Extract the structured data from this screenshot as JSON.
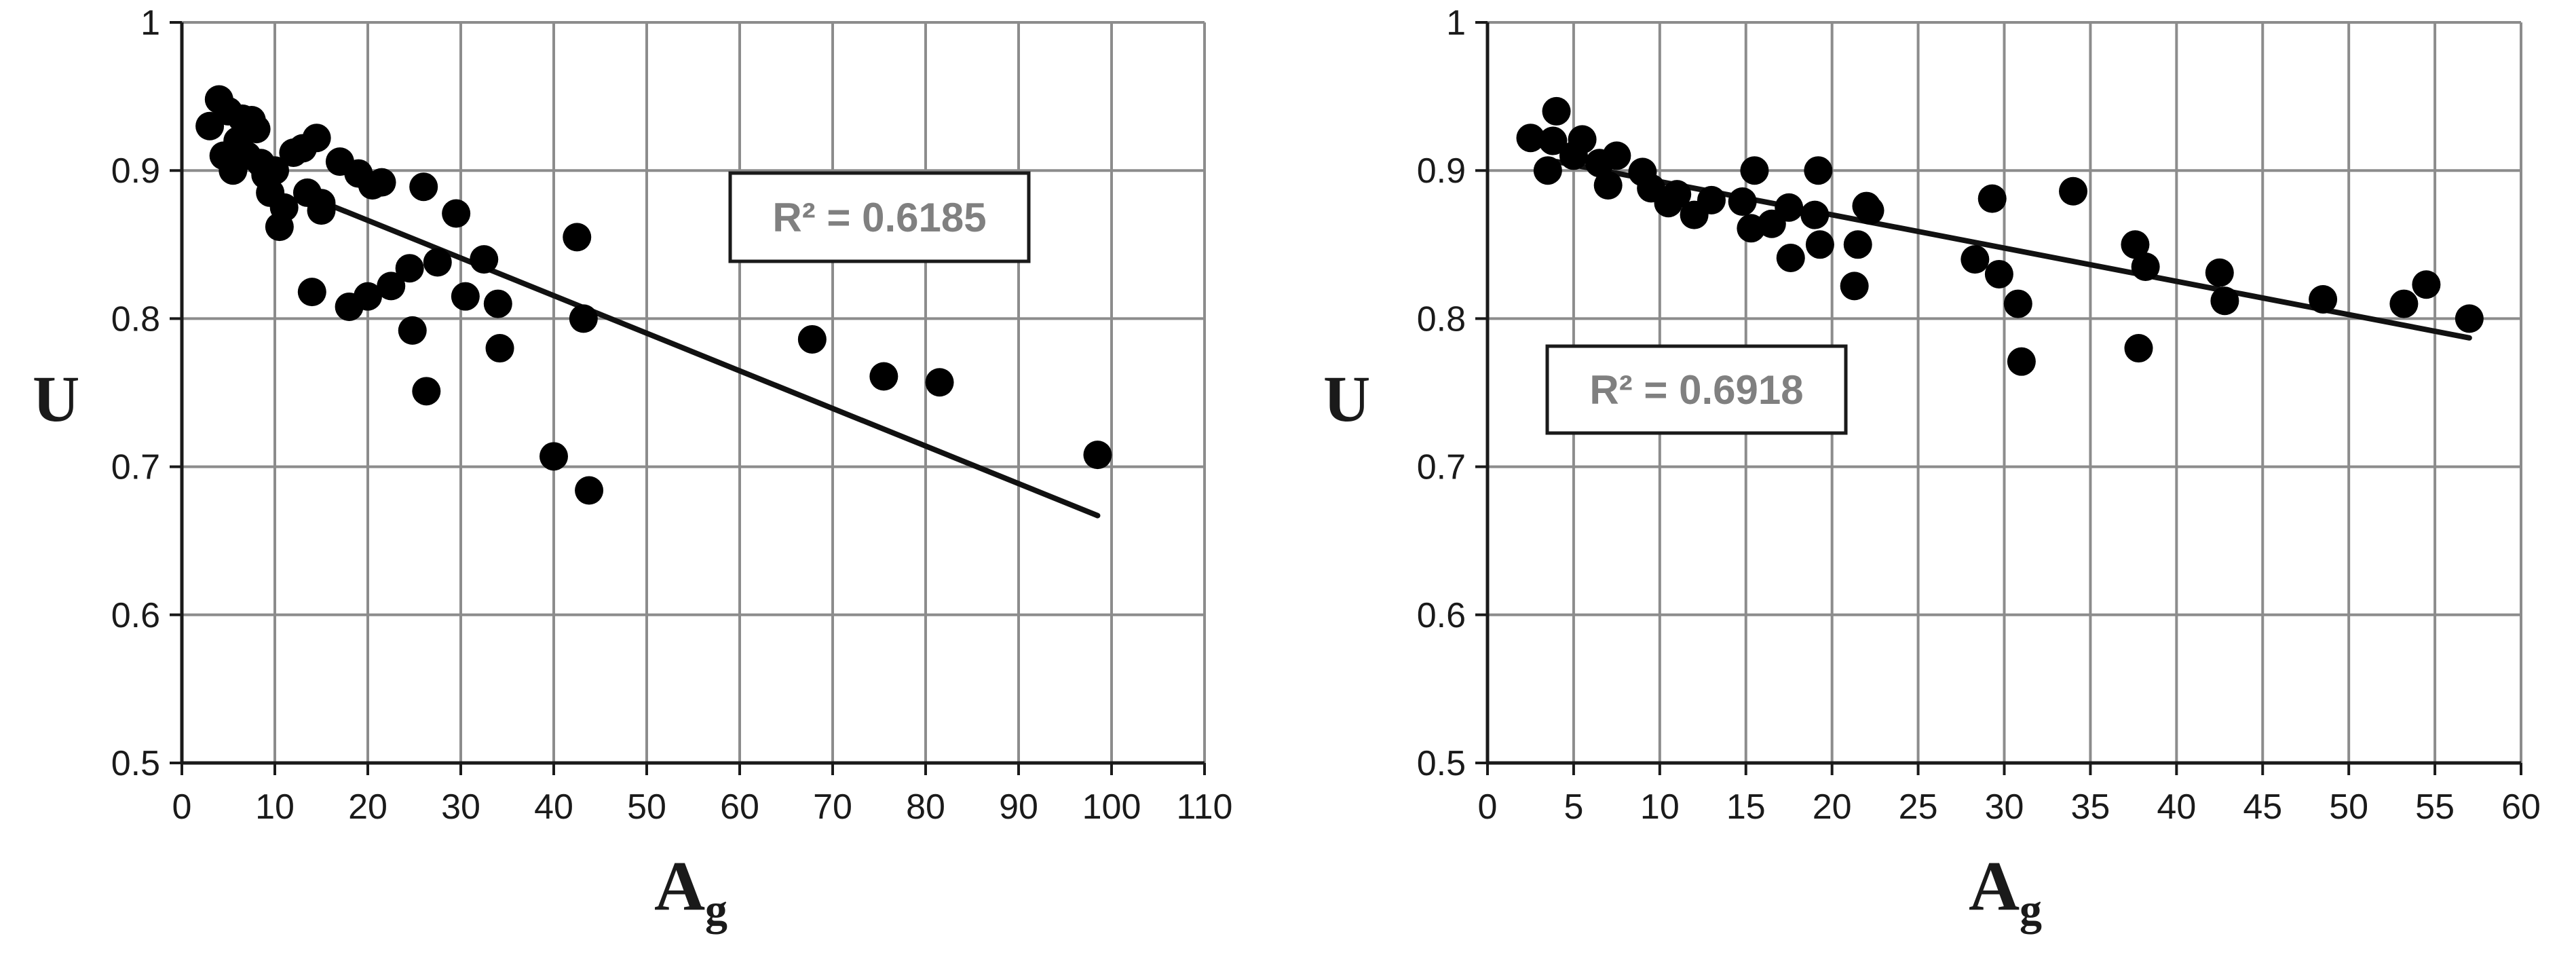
{
  "chart_data": [
    {
      "type": "scatter",
      "xlabel": "A",
      "xlabel_sub": "g",
      "ylabel": "U",
      "xlim": [
        0,
        110
      ],
      "ylim": [
        0.5,
        1
      ],
      "xticks": [
        "0",
        "10",
        "20",
        "30",
        "40",
        "50",
        "60",
        "70",
        "80",
        "90",
        "100",
        "110"
      ],
      "yticks": [
        "0.5",
        "0.6",
        "0.7",
        "0.8",
        "0.9",
        "1"
      ],
      "grid": true,
      "annotation": "R² = 0.6185",
      "trendline": [
        [
          15,
          0.879
        ],
        [
          98.5,
          0.667
        ]
      ],
      "points": [
        [
          3,
          0.93
        ],
        [
          4,
          0.948
        ],
        [
          4.5,
          0.91
        ],
        [
          5,
          0.94
        ],
        [
          5.5,
          0.9
        ],
        [
          6,
          0.92
        ],
        [
          6.5,
          0.935
        ],
        [
          7,
          0.91
        ],
        [
          7.5,
          0.934
        ],
        [
          8,
          0.928
        ],
        [
          8.5,
          0.905
        ],
        [
          9,
          0.897
        ],
        [
          9.5,
          0.885
        ],
        [
          10,
          0.9
        ],
        [
          10.5,
          0.862
        ],
        [
          11,
          0.875
        ],
        [
          12,
          0.912
        ],
        [
          13,
          0.915
        ],
        [
          13.5,
          0.885
        ],
        [
          14,
          0.818
        ],
        [
          14.5,
          0.922
        ],
        [
          15,
          0.873
        ],
        [
          15,
          0.878
        ],
        [
          17,
          0.906
        ],
        [
          18,
          0.808
        ],
        [
          19,
          0.898
        ],
        [
          20,
          0.815
        ],
        [
          20.5,
          0.89
        ],
        [
          21.5,
          0.892
        ],
        [
          22.5,
          0.822
        ],
        [
          24.5,
          0.834
        ],
        [
          24.8,
          0.792
        ],
        [
          26,
          0.889
        ],
        [
          26.3,
          0.751
        ],
        [
          27.5,
          0.838
        ],
        [
          29.5,
          0.871
        ],
        [
          30.5,
          0.815
        ],
        [
          32.5,
          0.84
        ],
        [
          34,
          0.81
        ],
        [
          34.2,
          0.78
        ],
        [
          40,
          0.707
        ],
        [
          42.5,
          0.855
        ],
        [
          43.2,
          0.8
        ],
        [
          43.8,
          0.684
        ],
        [
          67.8,
          0.786
        ],
        [
          75.5,
          0.761
        ],
        [
          81.5,
          0.757
        ],
        [
          98.5,
          0.708
        ]
      ]
    },
    {
      "type": "scatter",
      "xlabel": "A",
      "xlabel_sub": "g",
      "ylabel": "U",
      "xlim": [
        0,
        60
      ],
      "ylim": [
        0.5,
        1
      ],
      "xticks": [
        "0",
        "5",
        "10",
        "15",
        "20",
        "25",
        "30",
        "35",
        "40",
        "45",
        "50",
        "55",
        "60"
      ],
      "yticks": [
        "0.5",
        "0.6",
        "0.7",
        "0.8",
        "0.9",
        "1"
      ],
      "grid": true,
      "annotation": "R² = 0.6918",
      "trendline": [
        [
          4,
          0.906
        ],
        [
          57,
          0.787
        ]
      ],
      "points": [
        [
          2.5,
          0.922
        ],
        [
          3.5,
          0.9
        ],
        [
          3.8,
          0.92
        ],
        [
          4,
          0.94
        ],
        [
          5,
          0.91
        ],
        [
          5.5,
          0.921
        ],
        [
          6.5,
          0.905
        ],
        [
          7,
          0.89
        ],
        [
          7.5,
          0.91
        ],
        [
          9,
          0.899
        ],
        [
          9.5,
          0.888
        ],
        [
          10.5,
          0.878
        ],
        [
          11,
          0.884
        ],
        [
          12,
          0.87
        ],
        [
          13,
          0.88
        ],
        [
          14.8,
          0.879
        ],
        [
          15.3,
          0.861
        ],
        [
          15.5,
          0.9
        ],
        [
          16.5,
          0.864
        ],
        [
          17.5,
          0.875
        ],
        [
          17.6,
          0.841
        ],
        [
          19,
          0.87
        ],
        [
          19.2,
          0.9
        ],
        [
          19.3,
          0.85
        ],
        [
          21.3,
          0.822
        ],
        [
          21.5,
          0.85
        ],
        [
          22,
          0.876
        ],
        [
          22.2,
          0.873
        ],
        [
          28.3,
          0.84
        ],
        [
          29.3,
          0.881
        ],
        [
          29.7,
          0.83
        ],
        [
          30.8,
          0.81
        ],
        [
          31,
          0.771
        ],
        [
          34,
          0.886
        ],
        [
          37.6,
          0.85
        ],
        [
          37.8,
          0.78
        ],
        [
          38.2,
          0.835
        ],
        [
          42.5,
          0.831
        ],
        [
          42.8,
          0.812
        ],
        [
          48.5,
          0.813
        ],
        [
          53.2,
          0.81
        ],
        [
          54.5,
          0.823
        ],
        [
          57,
          0.8
        ]
      ]
    }
  ]
}
